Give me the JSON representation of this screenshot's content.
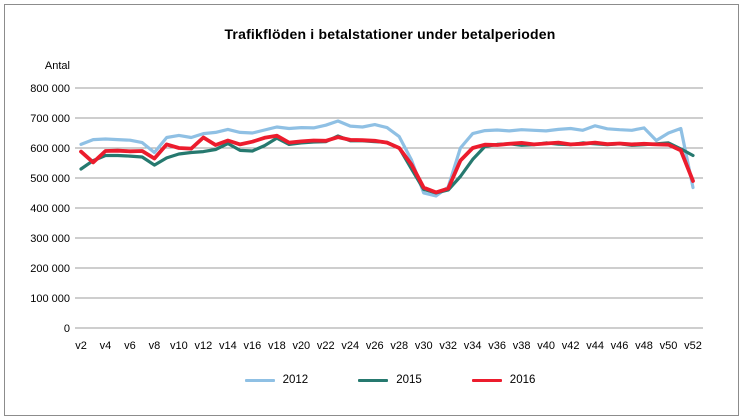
{
  "chart_data": {
    "type": "line",
    "title": "Trafikflöden i betalstationer under betalperioden",
    "ylabel": "Antal",
    "xlabel": "",
    "ylim": [
      0,
      800000
    ],
    "y_tick_step": 100000,
    "y_tick_labels": [
      "0",
      "100 000",
      "200 000",
      "300 000",
      "400 000",
      "500 000",
      "600 000",
      "700 000",
      "800 000"
    ],
    "grid": "horizontal",
    "legend_position": "bottom",
    "x_tick_every": 2,
    "categories": [
      "v2",
      "v3",
      "v4",
      "v5",
      "v6",
      "v7",
      "v8",
      "v9",
      "v10",
      "v11",
      "v12",
      "v13",
      "v14",
      "v15",
      "v16",
      "v17",
      "v18",
      "v19",
      "v20",
      "v21",
      "v22",
      "v23",
      "v24",
      "v25",
      "v26",
      "v27",
      "v28",
      "v29",
      "v30",
      "v31",
      "v32",
      "v33",
      "v34",
      "v35",
      "v36",
      "v37",
      "v38",
      "v39",
      "v40",
      "v41",
      "v42",
      "v43",
      "v44",
      "v45",
      "v46",
      "v47",
      "v48",
      "v49",
      "v50",
      "v51",
      "v52"
    ],
    "series": [
      {
        "name": "2012",
        "color": "#8FC0E4",
        "values": [
          612000,
          628000,
          630000,
          628000,
          626000,
          618000,
          585000,
          635000,
          642000,
          635000,
          648000,
          652000,
          662000,
          652000,
          650000,
          660000,
          670000,
          665000,
          668000,
          667000,
          676000,
          690000,
          673000,
          670000,
          678000,
          668000,
          638000,
          560000,
          450000,
          440000,
          470000,
          600000,
          648000,
          658000,
          660000,
          657000,
          661000,
          659000,
          657000,
          662000,
          665000,
          659000,
          674000,
          664000,
          661000,
          659000,
          667000,
          625000,
          650000,
          665000,
          468000
        ]
      },
      {
        "name": "2015",
        "color": "#26796F",
        "values": [
          530000,
          558000,
          575000,
          575000,
          573000,
          570000,
          543000,
          567000,
          580000,
          585000,
          588000,
          595000,
          615000,
          592000,
          590000,
          608000,
          633000,
          612000,
          617000,
          620000,
          621000,
          640000,
          624000,
          624000,
          621000,
          619000,
          600000,
          530000,
          462000,
          450000,
          460000,
          505000,
          562000,
          605000,
          612000,
          614000,
          609000,
          611000,
          617000,
          613000,
          611000,
          617000,
          614000,
          611000,
          614000,
          609000,
          611000,
          614000,
          617000,
          597000,
          575000
        ]
      },
      {
        "name": "2016",
        "color": "#EC1C2D",
        "values": [
          588000,
          552000,
          590000,
          591000,
          589000,
          590000,
          565000,
          612000,
          600000,
          598000,
          635000,
          610000,
          625000,
          612000,
          621000,
          634000,
          641000,
          618000,
          622000,
          625000,
          624000,
          636000,
          627000,
          626000,
          624000,
          618000,
          600000,
          545000,
          468000,
          452000,
          465000,
          558000,
          600000,
          611000,
          610000,
          614000,
          617000,
          612000,
          615000,
          618000,
          612000,
          614000,
          618000,
          613000,
          615000,
          612000,
          614000,
          612000,
          611000,
          592000,
          490000
        ]
      }
    ]
  }
}
